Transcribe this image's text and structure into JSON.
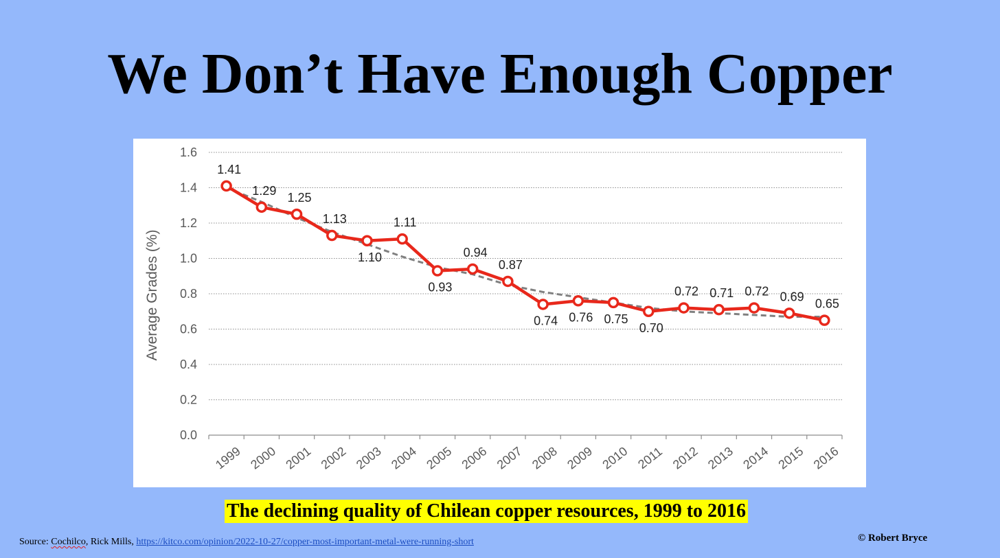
{
  "slide": {
    "title": "We Don’t Have Enough Copper",
    "caption": "The declining quality of Chilean copper resources, 1999 to 2016",
    "source_prefix": "Source",
    "source_colon": ": ",
    "source_first_author": "Cochilco",
    "source_rest": ", Rick Mills, ",
    "source_link": "https://kitco.com/opinion/2022-10-27/copper-most-important-metal-were-running-short",
    "copyright": "© Robert Bryce"
  },
  "colors": {
    "background": "#94b8fb",
    "series_line": "#e8281b",
    "trend_line": "#808080",
    "caption_highlight": "#ffff00"
  },
  "chart_data": {
    "type": "line",
    "title": "",
    "xlabel": "",
    "ylabel": "Average  Grades  (%)",
    "ylim": [
      0,
      1.6
    ],
    "yticks": [
      "0.0",
      "0.2",
      "0.4",
      "0.6",
      "0.8",
      "1.0",
      "1.2",
      "1.4",
      "1.6"
    ],
    "grid": true,
    "legend": "none",
    "categories": [
      "1999",
      "2000",
      "2001",
      "2002",
      "2003",
      "2004",
      "2005",
      "2006",
      "2007",
      "2008",
      "2009",
      "2010",
      "2011",
      "2012",
      "2013",
      "2014",
      "2015",
      "2016"
    ],
    "series": [
      {
        "values": [
          1.41,
          1.29,
          1.25,
          1.13,
          1.1,
          1.11,
          0.93,
          0.94,
          0.87,
          0.74,
          0.76,
          0.75,
          0.7,
          0.72,
          0.71,
          0.72,
          0.69,
          0.65
        ],
        "labels": [
          "1.41",
          "1.29",
          "1.25",
          "1.13",
          "1.10",
          "1.11",
          "0.93",
          "0.94",
          "0.87",
          "0.74",
          "0.76",
          "0.75",
          "0.70",
          "0.72",
          "0.71",
          "0.72",
          "0.69",
          "0.65"
        ],
        "label_positions": [
          "above",
          "above",
          "above",
          "above",
          "below",
          "above",
          "below",
          "above",
          "above",
          "below",
          "below",
          "below",
          "below",
          "above",
          "above",
          "above",
          "above",
          "above"
        ],
        "style": "solid-red-with-circle-markers"
      },
      {
        "values": [
          1.4,
          1.32,
          1.23,
          1.15,
          1.08,
          1.01,
          0.95,
          0.91,
          0.85,
          0.81,
          0.78,
          0.75,
          0.72,
          0.7,
          0.69,
          0.68,
          0.67,
          0.67
        ],
        "style": "dashed-gray-trend"
      }
    ]
  }
}
